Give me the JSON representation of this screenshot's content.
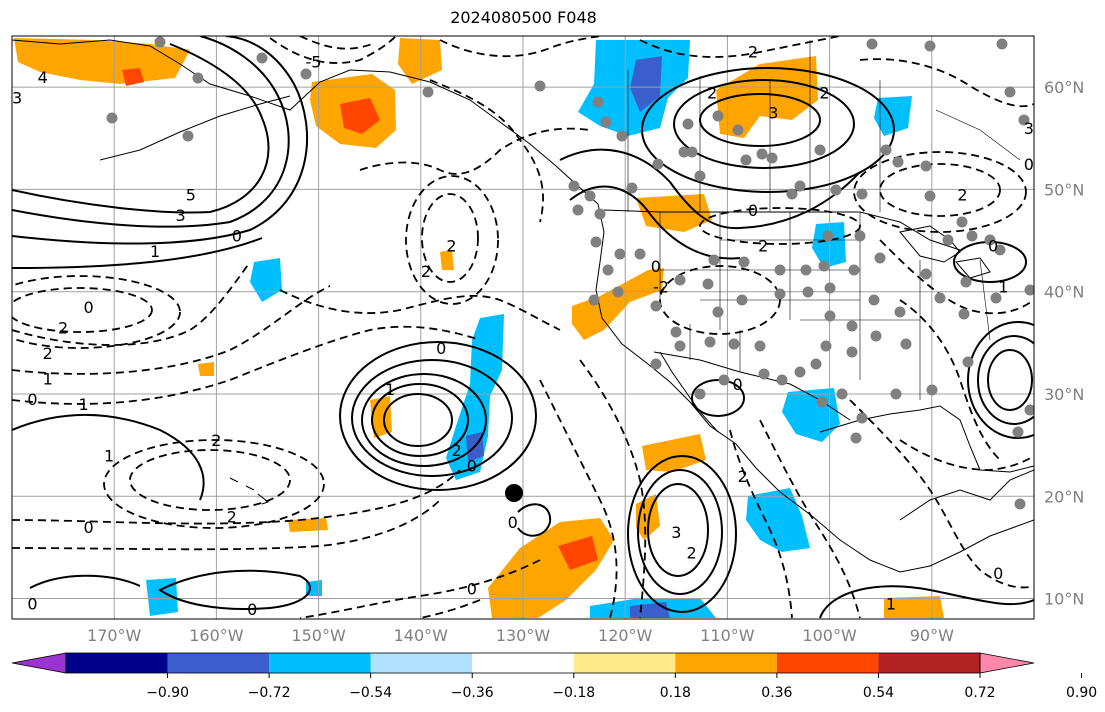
{
  "title": "2024080500 F048",
  "map": {
    "lon_range": [
      -180,
      -80
    ],
    "lat_range": [
      8,
      65
    ],
    "lon_labels": [
      "170°W",
      "160°W",
      "150°W",
      "140°W",
      "130°W",
      "120°W",
      "110°W",
      "100°W",
      "90°W"
    ],
    "lat_labels": [
      "60°N",
      "50°N",
      "40°N",
      "30°N",
      "20°N",
      "10°N"
    ]
  },
  "colorbar": {
    "colors": [
      "#9b32d2",
      "#00008b",
      "#3a5fcd",
      "#00bfff",
      "#b0e2ff",
      "#ffffff",
      "#ffeb8a",
      "#ffa500",
      "#ff4500",
      "#b22222",
      "#ff88aa"
    ],
    "tick_labels": [
      "−0.90",
      "−0.72",
      "−0.54",
      "−0.36",
      "−0.18",
      "0.18",
      "0.36",
      "0.54",
      "0.72",
      "0.90"
    ]
  },
  "contour_labels": [
    {
      "text": "-5",
      "lon": -150.5,
      "lat": 62.5
    },
    {
      "text": "3",
      "lon": -179.5,
      "lat": 59.0
    },
    {
      "text": "4",
      "lon": -177,
      "lat": 61
    },
    {
      "text": "5",
      "lon": -162.5,
      "lat": 49.5
    },
    {
      "text": "3",
      "lon": -163.5,
      "lat": 47.5
    },
    {
      "text": "1",
      "lon": -166,
      "lat": 44
    },
    {
      "text": "0",
      "lon": -158,
      "lat": 45.5
    },
    {
      "text": "0",
      "lon": -172.5,
      "lat": 38.5
    },
    {
      "text": "2",
      "lon": -175,
      "lat": 36.5
    },
    {
      "text": "2",
      "lon": -176.5,
      "lat": 34
    },
    {
      "text": "1",
      "lon": -176.5,
      "lat": 31.5
    },
    {
      "text": "0",
      "lon": -178,
      "lat": 29.5
    },
    {
      "text": "1",
      "lon": -173,
      "lat": 29
    },
    {
      "text": "1",
      "lon": -170.5,
      "lat": 24
    },
    {
      "text": "2",
      "lon": -160,
      "lat": 25.5
    },
    {
      "text": "2",
      "lon": -158.5,
      "lat": 18
    },
    {
      "text": "0",
      "lon": -172.5,
      "lat": 17
    },
    {
      "text": "0",
      "lon": -178,
      "lat": 9.5
    },
    {
      "text": "0",
      "lon": -156.5,
      "lat": 9.0
    },
    {
      "text": "2",
      "lon": -139.5,
      "lat": 42
    },
    {
      "text": "2",
      "lon": -137,
      "lat": 44.5
    },
    {
      "text": "0",
      "lon": -138,
      "lat": 34.5
    },
    {
      "text": "1",
      "lon": -143,
      "lat": 30.5
    },
    {
      "text": "2",
      "lon": -136.5,
      "lat": 24.5
    },
    {
      "text": "0",
      "lon": -135,
      "lat": 23
    },
    {
      "text": "0",
      "lon": -131,
      "lat": 17.5
    },
    {
      "text": "0",
      "lon": -135,
      "lat": 11
    },
    {
      "text": "3",
      "lon": -115,
      "lat": 16.5
    },
    {
      "text": "2",
      "lon": -113.5,
      "lat": 14.5
    },
    {
      "text": "0",
      "lon": -109,
      "lat": 31
    },
    {
      "text": "2",
      "lon": -108.5,
      "lat": 22
    },
    {
      "text": "-2",
      "lon": -116.5,
      "lat": 40.5
    },
    {
      "text": "0",
      "lon": -117,
      "lat": 42.5
    },
    {
      "text": "2",
      "lon": -106.5,
      "lat": 44.5
    },
    {
      "text": "0",
      "lon": -107.5,
      "lat": 48
    },
    {
      "text": "2",
      "lon": -111.5,
      "lat": 59.5
    },
    {
      "text": "3",
      "lon": -105.5,
      "lat": 57.5
    },
    {
      "text": "2",
      "lon": -100.5,
      "lat": 59.5
    },
    {
      "text": "2",
      "lon": -107.5,
      "lat": 63.5
    },
    {
      "text": "2",
      "lon": -87,
      "lat": 49.5
    },
    {
      "text": "1",
      "lon": -83,
      "lat": 40.5
    },
    {
      "text": "0",
      "lon": -84,
      "lat": 44.5
    },
    {
      "text": "0",
      "lon": -80.5,
      "lat": 52.5
    },
    {
      "text": "3",
      "lon": -80.5,
      "lat": 56
    },
    {
      "text": "1",
      "lon": -94,
      "lat": 9.5
    },
    {
      "text": "0",
      "lon": -83.5,
      "lat": 12.5
    }
  ]
}
